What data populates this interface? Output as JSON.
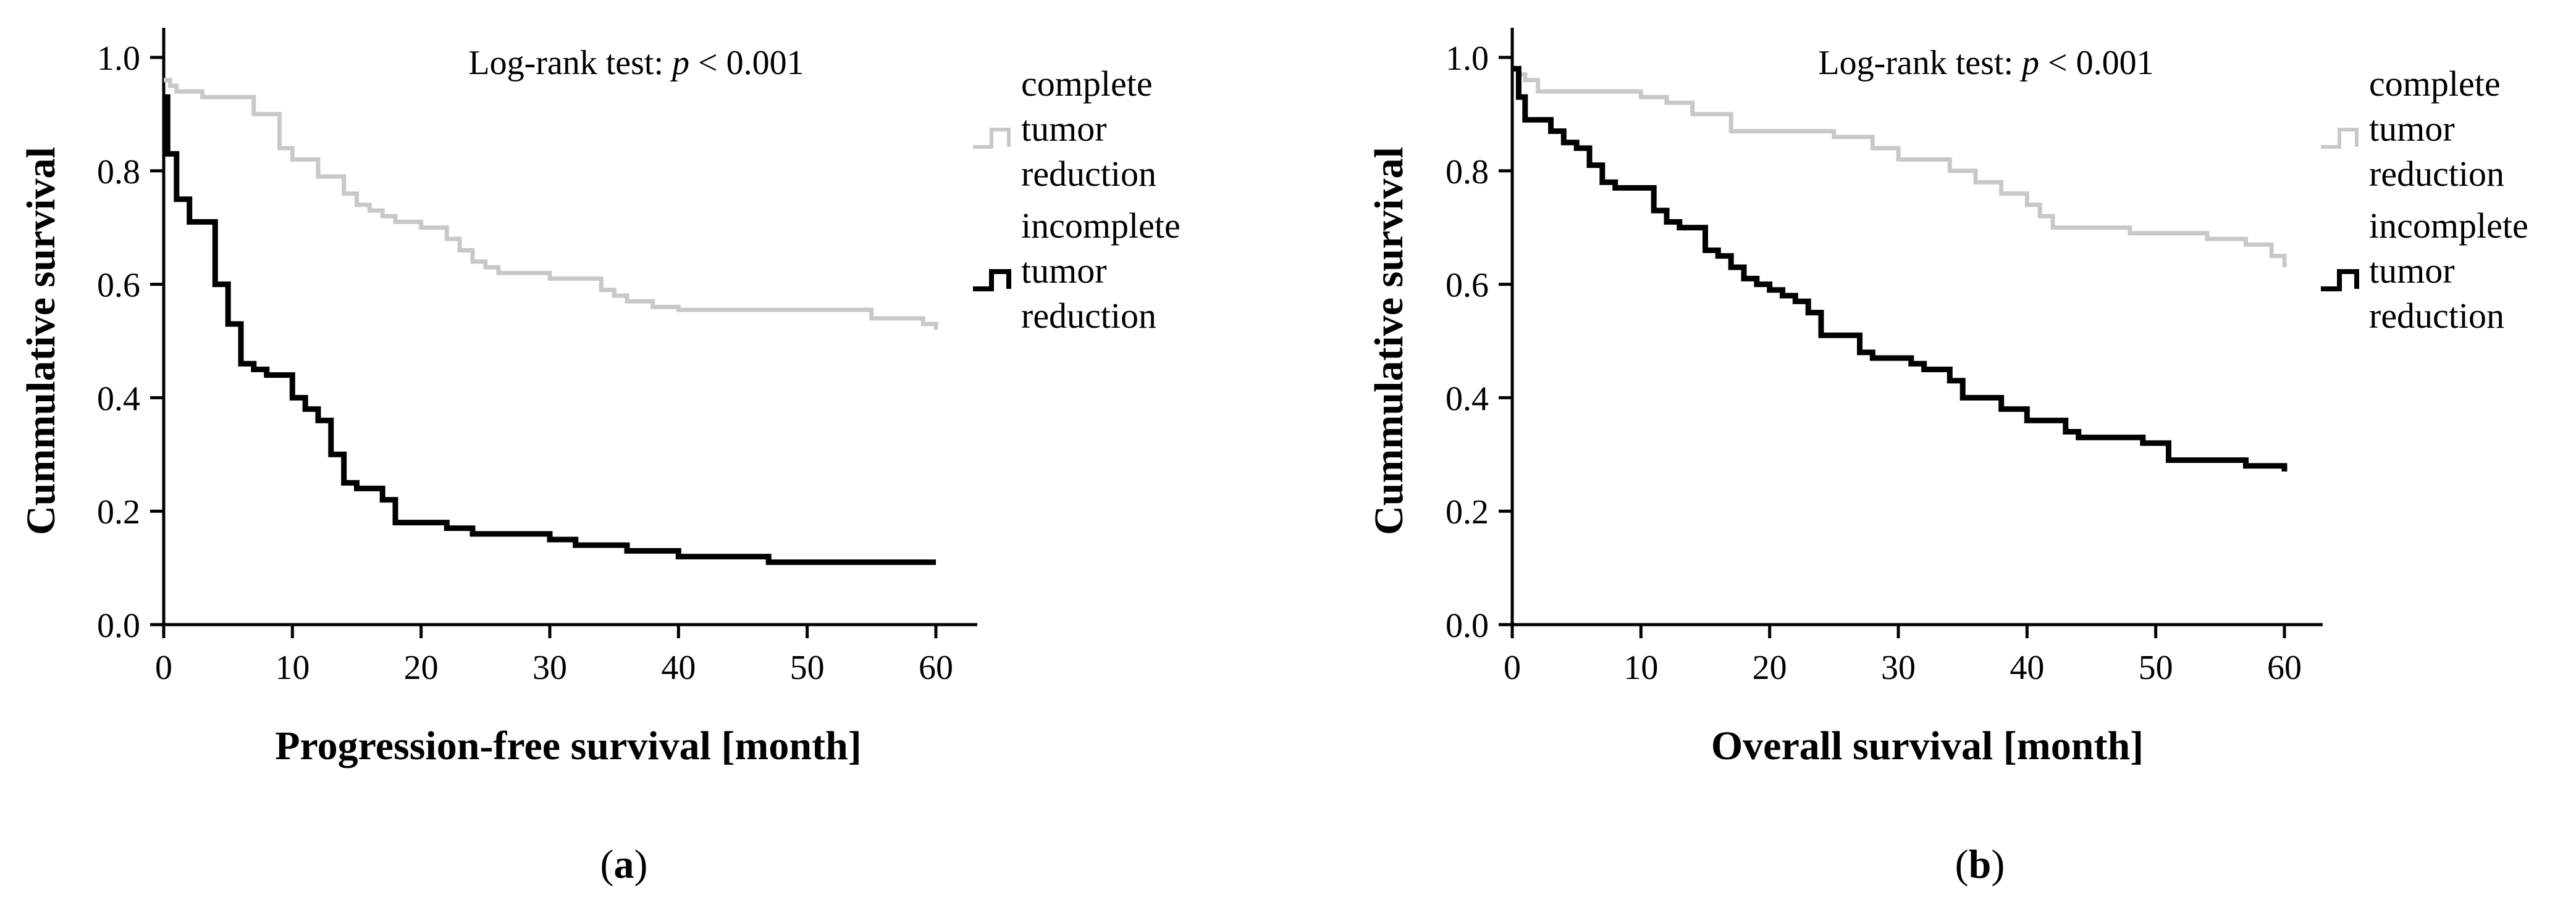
{
  "chart_data": [
    {
      "type": "line",
      "subtype": "kaplan-meier step",
      "panel_label": "a",
      "xlabel": "Progression-free survival [month]",
      "ylabel": "Cummulative survival",
      "xlim": [
        0,
        60
      ],
      "ylim": [
        0,
        1.0
      ],
      "xticks": [
        0,
        10,
        20,
        30,
        40,
        50,
        60
      ],
      "yticks": [
        "0.0",
        "0.2",
        "0.4",
        "0.6",
        "0.8",
        "1.0"
      ],
      "annotation": {
        "prefix": "Log-rank test: ",
        "p": "p",
        "suffix": " < 0.001"
      },
      "legend_position": "right",
      "series": [
        {
          "name": "complete tumor reduction",
          "legend_lines": [
            "complete",
            "tumor",
            "reduction"
          ],
          "color": "#c8c8c8",
          "x": [
            0,
            0.5,
            1,
            3,
            7,
            9,
            10,
            12,
            14,
            15,
            16,
            17,
            18,
            20,
            22,
            23,
            24,
            25,
            26,
            30,
            34,
            35,
            36,
            38,
            40,
            55,
            59,
            60
          ],
          "y": [
            0.96,
            0.95,
            0.94,
            0.93,
            0.9,
            0.84,
            0.82,
            0.79,
            0.76,
            0.74,
            0.73,
            0.72,
            0.71,
            0.7,
            0.68,
            0.66,
            0.64,
            0.63,
            0.62,
            0.61,
            0.59,
            0.58,
            0.57,
            0.56,
            0.555,
            0.54,
            0.53,
            0.52
          ]
        },
        {
          "name": "incomplete tumor reduction",
          "legend_lines": [
            "incomplete",
            "tumor",
            "reduction"
          ],
          "color": "#000000",
          "x": [
            0,
            0.3,
            1,
            2,
            4,
            5,
            6,
            7,
            8,
            10,
            11,
            12,
            13,
            14,
            15,
            17,
            18,
            22,
            24,
            30,
            32,
            36,
            40,
            47,
            55,
            60
          ],
          "y": [
            0.93,
            0.83,
            0.75,
            0.71,
            0.6,
            0.53,
            0.46,
            0.45,
            0.44,
            0.4,
            0.38,
            0.36,
            0.3,
            0.25,
            0.24,
            0.22,
            0.18,
            0.17,
            0.16,
            0.15,
            0.14,
            0.13,
            0.12,
            0.11,
            0.11,
            0.11
          ]
        }
      ]
    },
    {
      "type": "line",
      "subtype": "kaplan-meier step",
      "panel_label": "b",
      "xlabel": "Overall survival [month]",
      "ylabel": "Cummulative survival",
      "xlim": [
        0,
        60
      ],
      "ylim": [
        0,
        1.0
      ],
      "xticks": [
        0,
        10,
        20,
        30,
        40,
        50,
        60
      ],
      "yticks": [
        "0.0",
        "0.2",
        "0.4",
        "0.6",
        "0.8",
        "1.0"
      ],
      "annotation": {
        "prefix": "Log-rank test: ",
        "p": "p",
        "suffix": " < 0.001"
      },
      "legend_position": "right",
      "series": [
        {
          "name": "complete tumor reduction",
          "legend_lines": [
            "complete",
            "tumor",
            "reduction"
          ],
          "color": "#c8c8c8",
          "x": [
            0,
            0.5,
            1,
            2,
            10,
            12,
            14,
            17,
            25,
            28,
            30,
            34,
            36,
            38,
            40,
            41,
            42,
            48,
            54,
            57,
            59,
            60
          ],
          "y": [
            0.98,
            0.97,
            0.96,
            0.94,
            0.93,
            0.92,
            0.9,
            0.87,
            0.86,
            0.84,
            0.82,
            0.8,
            0.78,
            0.76,
            0.74,
            0.72,
            0.7,
            0.69,
            0.68,
            0.67,
            0.65,
            0.63
          ]
        },
        {
          "name": "incomplete tumor reduction",
          "legend_lines": [
            "incomplete",
            "tumor",
            "reduction"
          ],
          "color": "#000000",
          "x": [
            0,
            0.5,
            1,
            3,
            4,
            5,
            6,
            7,
            8,
            11,
            12,
            13,
            15,
            16,
            17,
            18,
            19,
            20,
            21,
            22,
            23,
            24,
            27,
            28,
            31,
            32,
            34,
            35,
            38,
            40,
            43,
            44,
            49,
            51,
            57,
            60
          ],
          "y": [
            0.98,
            0.93,
            0.89,
            0.87,
            0.85,
            0.84,
            0.81,
            0.78,
            0.77,
            0.73,
            0.71,
            0.7,
            0.66,
            0.65,
            0.63,
            0.61,
            0.6,
            0.59,
            0.58,
            0.57,
            0.55,
            0.51,
            0.48,
            0.47,
            0.46,
            0.45,
            0.43,
            0.4,
            0.38,
            0.36,
            0.34,
            0.33,
            0.32,
            0.29,
            0.28,
            0.27
          ]
        }
      ]
    }
  ]
}
